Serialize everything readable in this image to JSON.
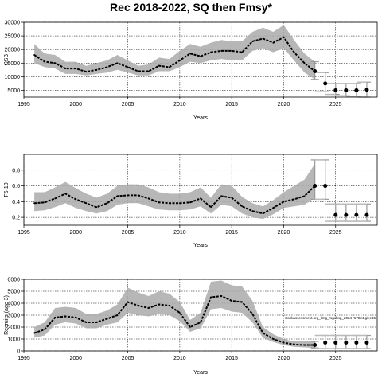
{
  "title": "Rec 2018-2022, SQ then Fmsy*",
  "chart_data": [
    {
      "type": "line",
      "ylabel": "SSB",
      "xlabel": "Years",
      "xlim": [
        1995,
        2029
      ],
      "ylim": [
        2500,
        30000
      ],
      "xticks": [
        1995,
        2000,
        2005,
        2010,
        2015,
        2020,
        2025
      ],
      "yticks": [
        5000,
        10000,
        15000,
        20000,
        25000,
        30000
      ],
      "grid": true,
      "series": [
        {
          "x": [
            1996,
            1997,
            1998,
            1999,
            2000,
            2001,
            2002,
            2003,
            2004,
            2005,
            2006,
            2007,
            2008,
            2009,
            2010,
            2011,
            2012,
            2013,
            2014,
            2015,
            2016,
            2017,
            2018,
            2019,
            2020,
            2021,
            2022,
            2023
          ],
          "y": [
            18000,
            15500,
            15000,
            13000,
            13000,
            11800,
            12500,
            13500,
            15000,
            13500,
            12000,
            12000,
            14000,
            13500,
            16000,
            18500,
            17500,
            19000,
            19500,
            19500,
            19000,
            23000,
            24000,
            22500,
            24500,
            19000,
            15000,
            12000
          ],
          "lower": [
            15000,
            13500,
            13000,
            11000,
            11000,
            10500,
            11000,
            11500,
            12500,
            11500,
            10500,
            10500,
            12000,
            12000,
            13500,
            15500,
            15000,
            16000,
            16500,
            16000,
            16000,
            19500,
            20500,
            19000,
            20500,
            16000,
            11500,
            9000
          ],
          "upper": [
            22000,
            18500,
            18000,
            15500,
            15500,
            14000,
            15000,
            16000,
            18000,
            16000,
            14000,
            14500,
            17000,
            16500,
            19500,
            22000,
            21000,
            22500,
            23500,
            23000,
            23000,
            26500,
            28000,
            26500,
            29000,
            23500,
            18500,
            15500
          ]
        }
      ],
      "projection_points": [
        {
          "x": 2023,
          "y": 12000
        },
        {
          "x": 2024,
          "y": 7500
        },
        {
          "x": 2025,
          "y": 5000
        },
        {
          "x": 2026,
          "y": 5000
        },
        {
          "x": 2027,
          "y": 5000
        },
        {
          "x": 2028,
          "y": 5200
        }
      ],
      "projection_intervals": [
        {
          "x": 2023,
          "lower": 9000,
          "upper": 15500
        },
        {
          "x": 2024,
          "lower": 4500,
          "upper": 11500
        },
        {
          "x": 2025,
          "lower": 3500,
          "upper": 7500
        },
        {
          "x": 2026,
          "lower": 3000,
          "upper": 7500
        },
        {
          "x": 2027,
          "lower": 2700,
          "upper": 7500
        },
        {
          "x": 2028,
          "lower": 2500,
          "upper": 8000
        }
      ]
    },
    {
      "type": "line",
      "ylabel": "F5-10",
      "xlabel": "Years",
      "xlim": [
        1995,
        2029
      ],
      "ylim": [
        0.1,
        1.0
      ],
      "xticks": [
        1995,
        2000,
        2005,
        2010,
        2015,
        2020,
        2025
      ],
      "yticks": [
        0.2,
        0.4,
        0.6,
        0.8
      ],
      "grid": true,
      "series": [
        {
          "x": [
            1996,
            1997,
            1998,
            1999,
            2000,
            2001,
            2002,
            2003,
            2004,
            2005,
            2006,
            2007,
            2008,
            2009,
            2010,
            2011,
            2012,
            2013,
            2014,
            2015,
            2016,
            2017,
            2018,
            2019,
            2020,
            2021,
            2022,
            2023
          ],
          "y": [
            0.38,
            0.39,
            0.44,
            0.5,
            0.43,
            0.38,
            0.33,
            0.38,
            0.47,
            0.48,
            0.48,
            0.44,
            0.39,
            0.38,
            0.38,
            0.39,
            0.44,
            0.33,
            0.47,
            0.45,
            0.34,
            0.28,
            0.25,
            0.32,
            0.4,
            0.43,
            0.47,
            0.6
          ],
          "lower": [
            0.28,
            0.29,
            0.33,
            0.38,
            0.32,
            0.28,
            0.25,
            0.28,
            0.36,
            0.38,
            0.38,
            0.34,
            0.3,
            0.29,
            0.29,
            0.3,
            0.34,
            0.25,
            0.36,
            0.34,
            0.25,
            0.2,
            0.18,
            0.24,
            0.32,
            0.34,
            0.36,
            0.45
          ],
          "upper": [
            0.52,
            0.52,
            0.58,
            0.65,
            0.57,
            0.5,
            0.45,
            0.5,
            0.6,
            0.62,
            0.62,
            0.58,
            0.52,
            0.5,
            0.5,
            0.52,
            0.58,
            0.45,
            0.62,
            0.6,
            0.46,
            0.38,
            0.34,
            0.42,
            0.52,
            0.6,
            0.68,
            0.88
          ]
        }
      ],
      "projection_points": [
        {
          "x": 2023,
          "y": 0.6
        },
        {
          "x": 2024,
          "y": 0.6
        },
        {
          "x": 2025,
          "y": 0.23
        },
        {
          "x": 2026,
          "y": 0.23
        },
        {
          "x": 2027,
          "y": 0.23
        },
        {
          "x": 2028,
          "y": 0.23
        }
      ],
      "projection_intervals": [
        {
          "x": 2023,
          "lower": 0.43,
          "upper": 0.93
        },
        {
          "x": 2024,
          "lower": 0.43,
          "upper": 0.93
        },
        {
          "x": 2025,
          "lower": 0.15,
          "upper": 0.37
        },
        {
          "x": 2026,
          "lower": 0.15,
          "upper": 0.37
        },
        {
          "x": 2027,
          "lower": 0.15,
          "upper": 0.37
        },
        {
          "x": 2028,
          "lower": 0.15,
          "upper": 0.37
        }
      ]
    },
    {
      "type": "line",
      "ylabel": "Recruits (age 3)",
      "xlabel": "Years",
      "xlim": [
        1995,
        2029
      ],
      "ylim": [
        0,
        6000
      ],
      "xticks": [
        1995,
        2000,
        2005,
        2010,
        2015,
        2020,
        2025
      ],
      "yticks": [
        0,
        1000,
        2000,
        3000,
        4000,
        5000,
        6000
      ],
      "grid": true,
      "annotation": "stockassessment.org_limg_rsgxhnp_2024 r17924 git:e36",
      "series": [
        {
          "x": [
            1996,
            1997,
            1998,
            1999,
            2000,
            2001,
            2002,
            2003,
            2004,
            2005,
            2006,
            2007,
            2008,
            2009,
            2010,
            2011,
            2012,
            2013,
            2014,
            2015,
            2016,
            2017,
            2018,
            2019,
            2020,
            2021,
            2022,
            2023
          ],
          "y": [
            1500,
            1800,
            2800,
            2900,
            2800,
            2400,
            2400,
            2700,
            3000,
            4100,
            3800,
            3600,
            3900,
            3800,
            3200,
            2000,
            2400,
            4500,
            4600,
            4200,
            4100,
            3100,
            1500,
            1000,
            700,
            550,
            500,
            500
          ],
          "lower": [
            1100,
            1300,
            2200,
            2400,
            2300,
            1900,
            1900,
            2200,
            2400,
            3200,
            3000,
            2900,
            3100,
            3000,
            2500,
            1600,
            1900,
            3500,
            3600,
            3300,
            3200,
            2400,
            1100,
            750,
            500,
            350,
            300,
            250
          ],
          "upper": [
            2000,
            2400,
            3600,
            3700,
            3600,
            3100,
            3100,
            3400,
            3900,
            5300,
            4900,
            4600,
            5000,
            4800,
            4100,
            2600,
            3200,
            5800,
            5900,
            5500,
            5400,
            4200,
            2000,
            1400,
            1000,
            800,
            800,
            800
          ]
        }
      ],
      "projection_points": [
        {
          "x": 2023,
          "y": 500
        },
        {
          "x": 2024,
          "y": 700
        },
        {
          "x": 2025,
          "y": 700
        },
        {
          "x": 2026,
          "y": 700
        },
        {
          "x": 2027,
          "y": 700
        },
        {
          "x": 2028,
          "y": 700
        }
      ],
      "projection_intervals": [
        {
          "x": 2023,
          "lower": 250,
          "upper": 800
        },
        {
          "x": 2024,
          "lower": 200,
          "upper": 1300
        },
        {
          "x": 2025,
          "lower": 200,
          "upper": 1300
        },
        {
          "x": 2026,
          "lower": 200,
          "upper": 1300
        },
        {
          "x": 2027,
          "lower": 200,
          "upper": 1300
        },
        {
          "x": 2028,
          "lower": 200,
          "upper": 1300
        }
      ]
    }
  ]
}
